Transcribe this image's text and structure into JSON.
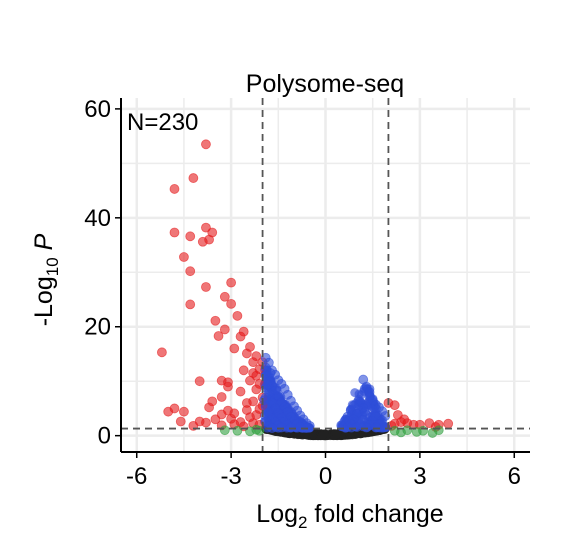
{
  "chart_data": {
    "type": "scatter",
    "title": "Polysome-seq",
    "annotation": "N=230",
    "xlabel": {
      "prefix": "Log",
      "sub": "2",
      "suffix": " fold change"
    },
    "ylabel": {
      "prefix": "-Log",
      "sub": "10",
      "italic": " P"
    },
    "xlim": [
      -6.5,
      6.5
    ],
    "ylim": [
      -3,
      62
    ],
    "xticks": [
      -6,
      -3,
      0,
      3,
      6
    ],
    "xtick_labels": [
      "-6",
      "-3",
      "0",
      "3",
      "6"
    ],
    "yticks": [
      0,
      20,
      40,
      60
    ],
    "ytick_labels": [
      "0",
      "20",
      "40",
      "60"
    ],
    "grid": true,
    "fc_cutoff": 2,
    "p_cutoff_log10": 1.3,
    "colors": {
      "significant": "#e41a1c",
      "p_only": "#2f4fd8",
      "fc_only": "#2e9e3e",
      "ns": "#222222",
      "grid": "#ececec",
      "cutoff_line": "#555555"
    },
    "series": [
      {
        "key": "significant",
        "points": [
          [
            -3.8,
            53.5
          ],
          [
            -4.8,
            45.3
          ],
          [
            -4.2,
            47.3
          ],
          [
            -4.8,
            37.3
          ],
          [
            -3.8,
            38.2
          ],
          [
            -3.6,
            37.3
          ],
          [
            -4.3,
            36.6
          ],
          [
            -3.7,
            36.0
          ],
          [
            -3.9,
            35.6
          ],
          [
            -4.5,
            32.8
          ],
          [
            -4.3,
            30.2
          ],
          [
            -3.0,
            28.1
          ],
          [
            -3.8,
            27.3
          ],
          [
            -3.2,
            25.5
          ],
          [
            -4.3,
            24.1
          ],
          [
            -3.0,
            24.2
          ],
          [
            -2.8,
            22.0
          ],
          [
            -3.5,
            21.1
          ],
          [
            -2.6,
            19.1
          ],
          [
            -3.2,
            19.5
          ],
          [
            -2.7,
            18.2
          ],
          [
            -3.4,
            18.3
          ],
          [
            -2.4,
            16.3
          ],
          [
            -2.9,
            16.0
          ],
          [
            -2.5,
            15.1
          ],
          [
            -2.2,
            14.6
          ],
          [
            -5.2,
            15.3
          ],
          [
            -2.3,
            13.5
          ],
          [
            -2.0,
            13.5
          ],
          [
            -2.1,
            12.2
          ],
          [
            -2.6,
            12.0
          ],
          [
            -2.2,
            11.0
          ],
          [
            -2.4,
            10.1
          ],
          [
            -2.1,
            9.5
          ],
          [
            -3.3,
            10.1
          ],
          [
            -3.1,
            9.0
          ],
          [
            -4.0,
            10.0
          ],
          [
            -2.2,
            8.5
          ],
          [
            -2.7,
            8.1
          ],
          [
            -3.3,
            7.1
          ],
          [
            -2.0,
            7.0
          ],
          [
            -2.3,
            6.3
          ],
          [
            -2.5,
            6.0
          ],
          [
            -2.0,
            5.5
          ],
          [
            -3.7,
            5.2
          ],
          [
            -4.8,
            5.0
          ],
          [
            -5.0,
            4.4
          ],
          [
            -4.5,
            4.4
          ],
          [
            -2.9,
            4.1
          ],
          [
            -3.3,
            3.9
          ],
          [
            -2.2,
            3.8
          ],
          [
            -2.4,
            3.4
          ],
          [
            -3.0,
            3.1
          ],
          [
            -3.5,
            3.0
          ],
          [
            -4.0,
            2.6
          ],
          [
            -4.6,
            2.6
          ],
          [
            -2.7,
            2.5
          ],
          [
            -3.8,
            2.4
          ],
          [
            -2.3,
            2.3
          ],
          [
            -2.9,
            2.1
          ],
          [
            -2.1,
            2.0
          ],
          [
            -4.2,
            1.8
          ],
          [
            -3.3,
            1.9
          ],
          [
            -2.6,
            1.7
          ],
          [
            -3.1,
            4.6
          ],
          [
            -2.5,
            4.7
          ],
          [
            -2.1,
            4.9
          ],
          [
            -3.6,
            6.3
          ],
          [
            -3.1,
            9.8
          ],
          [
            -2.3,
            11.5
          ],
          [
            2.0,
            6.0
          ],
          [
            2.2,
            5.6
          ],
          [
            2.3,
            3.8
          ],
          [
            2.5,
            3.0
          ],
          [
            2.4,
            2.5
          ],
          [
            2.6,
            2.3
          ],
          [
            2.2,
            2.2
          ],
          [
            2.8,
            2.0
          ],
          [
            3.0,
            2.0
          ],
          [
            3.3,
            2.3
          ],
          [
            3.6,
            2.0
          ],
          [
            3.9,
            2.2
          ],
          [
            3.5,
            1.6
          ],
          [
            2.1,
            1.8
          ]
        ]
      },
      {
        "key": "p_only",
        "points": [
          [
            -1.9,
            14.3
          ],
          [
            -1.8,
            13.4
          ],
          [
            -1.9,
            12.5
          ],
          [
            -1.7,
            12.0
          ],
          [
            -1.6,
            11.2
          ],
          [
            -1.9,
            11.0
          ],
          [
            -1.5,
            10.2
          ],
          [
            -1.8,
            10.0
          ],
          [
            -1.4,
            9.5
          ],
          [
            -1.7,
            9.2
          ],
          [
            -1.9,
            8.8
          ],
          [
            -1.3,
            8.6
          ],
          [
            -1.6,
            8.3
          ],
          [
            -1.8,
            7.8
          ],
          [
            -1.2,
            7.5
          ],
          [
            -1.5,
            7.2
          ],
          [
            -1.9,
            7.0
          ],
          [
            -1.1,
            6.4
          ],
          [
            -1.4,
            6.2
          ],
          [
            -1.7,
            6.1
          ],
          [
            -1.0,
            5.4
          ],
          [
            -1.3,
            5.3
          ],
          [
            -1.6,
            5.0
          ],
          [
            -1.9,
            5.3
          ],
          [
            -0.9,
            4.6
          ],
          [
            -1.2,
            4.4
          ],
          [
            -1.5,
            4.1
          ],
          [
            -1.8,
            4.3
          ],
          [
            -0.8,
            3.7
          ],
          [
            -1.1,
            3.5
          ],
          [
            -1.4,
            3.3
          ],
          [
            -1.7,
            3.2
          ],
          [
            -0.7,
            3.0
          ],
          [
            -1.0,
            2.8
          ],
          [
            -1.3,
            2.6
          ],
          [
            -1.6,
            2.5
          ],
          [
            -1.9,
            2.6
          ],
          [
            -0.6,
            2.3
          ],
          [
            -0.9,
            2.2
          ],
          [
            -1.2,
            2.0
          ],
          [
            -1.5,
            1.9
          ],
          [
            -1.8,
            1.8
          ],
          [
            -0.5,
            1.8
          ],
          [
            -0.8,
            1.6
          ],
          [
            -1.1,
            1.5
          ],
          [
            -1.4,
            1.5
          ],
          [
            -1.7,
            1.4
          ],
          [
            -1.95,
            6.5
          ],
          [
            -1.85,
            9.4
          ],
          [
            -1.75,
            11.5
          ],
          [
            1.2,
            10.3
          ],
          [
            1.3,
            9.0
          ],
          [
            1.4,
            7.2
          ],
          [
            1.5,
            6.5
          ],
          [
            1.1,
            6.2
          ],
          [
            1.6,
            5.7
          ],
          [
            0.9,
            5.5
          ],
          [
            1.2,
            5.1
          ],
          [
            1.5,
            4.8
          ],
          [
            1.8,
            4.5
          ],
          [
            0.8,
            4.6
          ],
          [
            1.0,
            4.0
          ],
          [
            1.3,
            3.8
          ],
          [
            1.6,
            3.6
          ],
          [
            1.9,
            3.6
          ],
          [
            0.7,
            3.5
          ],
          [
            0.9,
            3.0
          ],
          [
            1.2,
            2.9
          ],
          [
            1.5,
            2.7
          ],
          [
            1.8,
            2.8
          ],
          [
            0.6,
            2.6
          ],
          [
            0.8,
            2.2
          ],
          [
            1.1,
            2.1
          ],
          [
            1.4,
            2.0
          ],
          [
            1.7,
            2.1
          ],
          [
            0.5,
            1.9
          ],
          [
            0.7,
            1.6
          ],
          [
            1.0,
            1.6
          ],
          [
            1.3,
            1.5
          ],
          [
            1.6,
            1.5
          ],
          [
            1.9,
            1.6
          ],
          [
            1.4,
            8.0
          ],
          [
            1.7,
            5.2
          ],
          [
            1.25,
            4.4
          ]
        ]
      },
      {
        "key": "fc_only",
        "points": [
          [
            -2.1,
            0.9
          ],
          [
            -2.4,
            0.8
          ],
          [
            -2.8,
            0.9
          ],
          [
            -3.2,
            1.0
          ],
          [
            -2.2,
            1.1
          ],
          [
            2.2,
            0.9
          ],
          [
            2.6,
            1.0
          ],
          [
            3.1,
            0.9
          ],
          [
            3.6,
            1.0
          ],
          [
            2.4,
            0.6
          ],
          [
            2.9,
            0.7
          ],
          [
            3.4,
            0.5
          ]
        ]
      }
    ]
  }
}
